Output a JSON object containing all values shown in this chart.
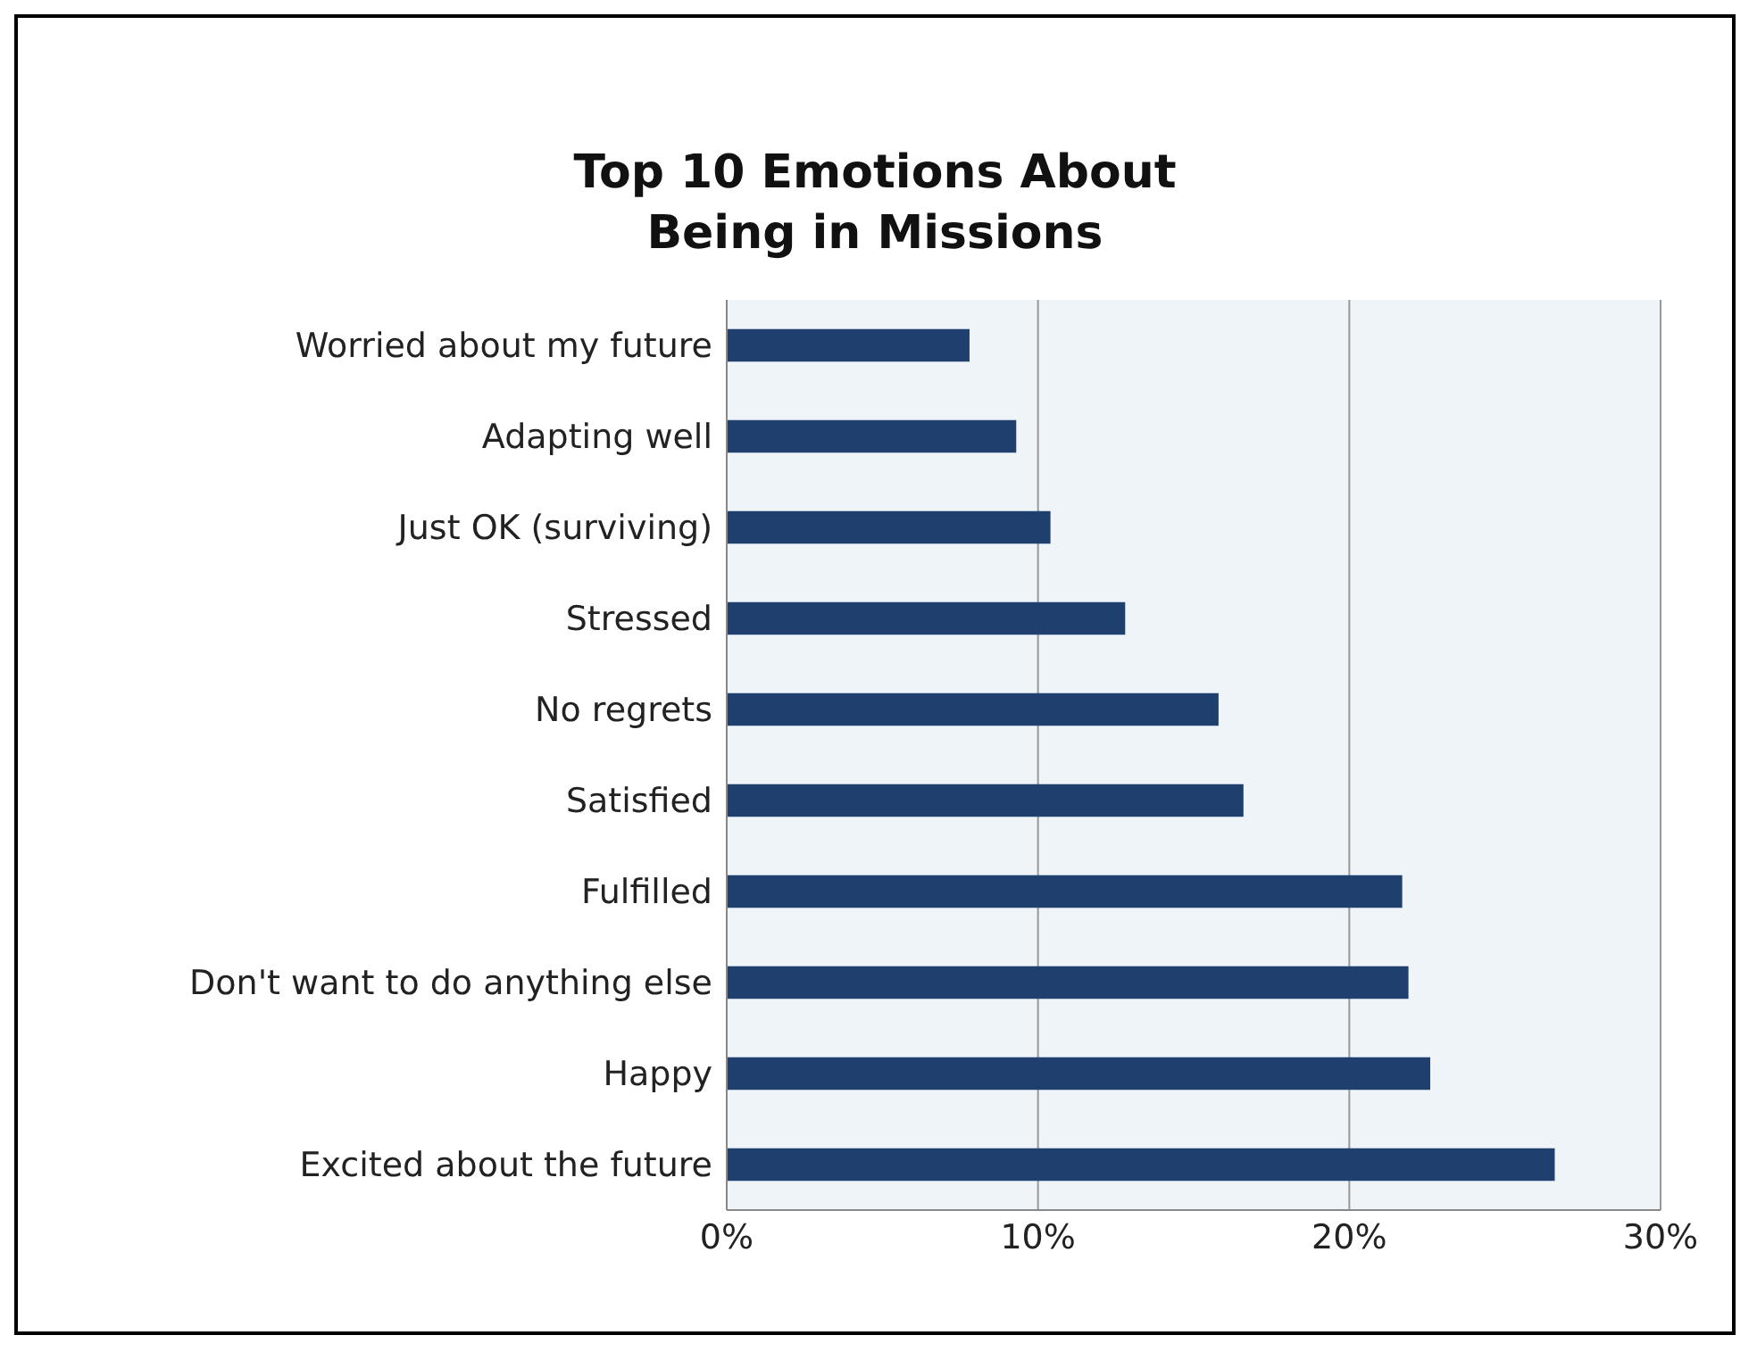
{
  "chart_data": {
    "type": "bar",
    "orientation": "horizontal",
    "title": "Top 10 Emotions About Being in Missions",
    "categories": [
      "Worried about my future",
      "Adapting well",
      "Just OK (surviving)",
      "Stressed",
      "No regrets",
      "Satisfied",
      "Fulfilled",
      "Don't want to do anything else",
      "Happy",
      "Excited about the future"
    ],
    "values": [
      7.8,
      9.3,
      10.4,
      12.8,
      15.8,
      16.6,
      21.7,
      21.9,
      22.6,
      26.6
    ],
    "color": "#1f3f6e",
    "xlim": [
      0,
      30
    ],
    "xticks": [
      {
        "value": 0,
        "label": "0%"
      },
      {
        "value": 10,
        "label": "10%"
      },
      {
        "value": 20,
        "label": "20%"
      },
      {
        "value": 30,
        "label": "30%"
      }
    ],
    "grid": "x"
  }
}
